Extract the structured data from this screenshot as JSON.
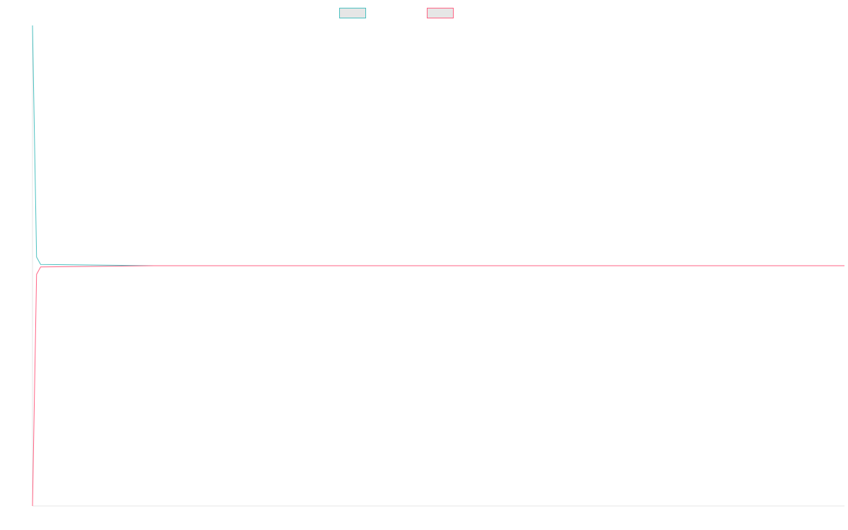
{
  "chart_data": {
    "type": "line",
    "title": "",
    "xlabel": "",
    "ylabel": "",
    "ylim": [
      -100,
      100
    ],
    "grid": false,
    "legend_position": "top",
    "x": [
      0,
      1,
      2,
      3,
      4,
      5,
      6,
      7,
      8,
      9,
      10,
      11,
      12,
      13,
      14,
      15,
      16,
      17,
      18,
      19,
      20
    ],
    "series": [
      {
        "name": "",
        "color": "#4bc0c0",
        "values": [
          100,
          3.6,
          0.5,
          0,
          0,
          0,
          0,
          0,
          0,
          0,
          0,
          0,
          0,
          0,
          0,
          0,
          0,
          0,
          0,
          0,
          0
        ]
      },
      {
        "name": "",
        "color": "#ff6384",
        "values": [
          -100,
          -3.6,
          -0.5,
          0,
          0,
          0,
          0,
          0,
          0,
          0,
          0,
          0,
          0,
          0,
          0,
          0,
          0,
          0,
          0,
          0,
          0
        ]
      }
    ],
    "legend": [
      {
        "label": "",
        "color": "#4bc0c0"
      },
      {
        "label": "",
        "color": "#ff6384"
      }
    ]
  }
}
